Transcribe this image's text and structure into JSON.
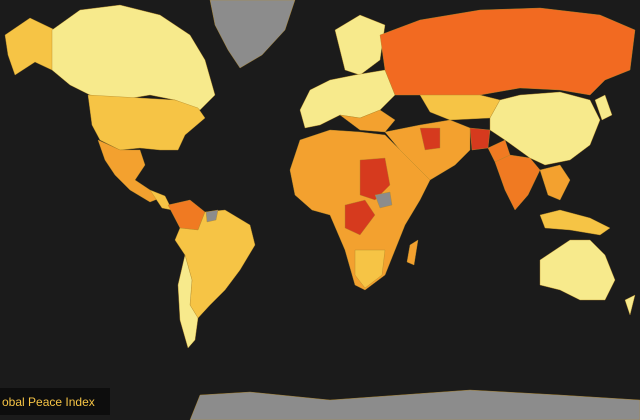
{
  "legend": {
    "title": "obal Peace Index"
  }
}
